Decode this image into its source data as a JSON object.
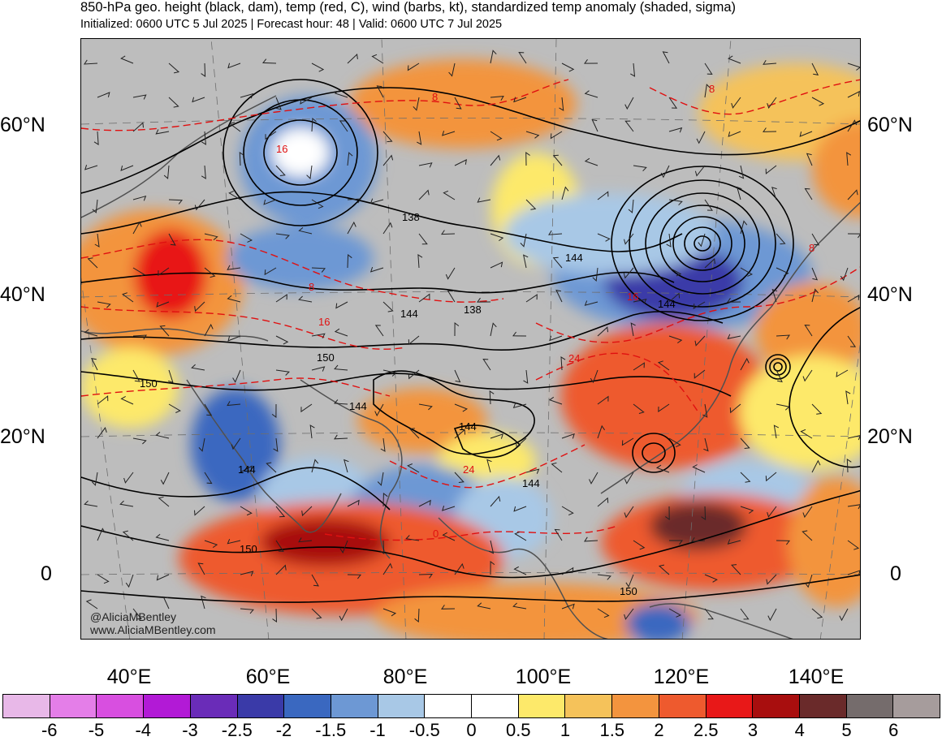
{
  "header": {
    "title": "850-hPa geo. height (black, dam), temp (red, C), wind (barbs, kt), standardized temp anomaly (shaded, sigma)",
    "subtitle": "Initialized: 0600 UTC 5 Jul 2025 | Forecast hour: 48 | Valid: 0600 UTC 7 Jul 2025"
  },
  "map": {
    "lat_labels": [
      "60°N",
      "40°N",
      "20°N",
      "0"
    ],
    "lon_labels": [
      "40°E",
      "60°E",
      "80°E",
      "100°E",
      "120°E",
      "140°E"
    ],
    "height_contour_labels": [
      "138",
      "144",
      "144",
      "138",
      "144",
      "150",
      "150",
      "144",
      "144",
      "144",
      "144",
      "150",
      "150"
    ],
    "temp_contour_labels": [
      "8",
      "8",
      "8",
      "16",
      "16",
      "16",
      "24",
      "24",
      "8",
      "0"
    ],
    "credits": [
      "@AliciaMBentley",
      "www.AliciaMBentley.com"
    ],
    "colors": {
      "height_contours": "#000000",
      "temp_contours": "#e01010",
      "land_outline": "#505050"
    }
  },
  "colorbar": {
    "labels": [
      "-6",
      "-5",
      "-4",
      "-3",
      "-2.5",
      "-2",
      "-1.5",
      "-1",
      "-0.5",
      "0",
      "0.5",
      "1",
      "1.5",
      "2",
      "2.5",
      "3",
      "4",
      "5",
      "6"
    ],
    "colors": [
      "#e8b8e8",
      "#e47ee8",
      "#d84fe0",
      "#b21ad6",
      "#6a2cb8",
      "#3a3aa8",
      "#3a68c0",
      "#6d98d4",
      "#a8c8e6",
      "#ffffff",
      "#ffffff",
      "#fde96a",
      "#f5c25a",
      "#f3943e",
      "#ee5a2e",
      "#e81818",
      "#a80e0e",
      "#6a2a2a",
      "#756c6c",
      "#a69c9c"
    ]
  }
}
